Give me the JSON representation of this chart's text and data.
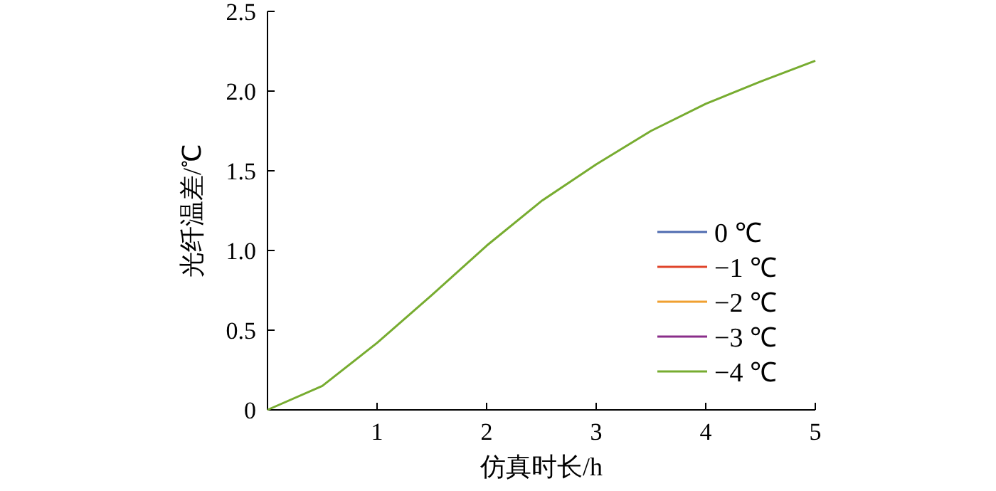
{
  "chart_data": {
    "type": "line",
    "xlabel": "仿真时长/h",
    "ylabel": "光纤温差/℃",
    "x": [
      0,
      0.5,
      1,
      1.5,
      2,
      2.5,
      3,
      3.5,
      4,
      4.5,
      5
    ],
    "series": [
      {
        "name": "0 ℃",
        "color": "#4f6bb0",
        "values": [
          null,
          null,
          null,
          null,
          null,
          null,
          null,
          null,
          null,
          null,
          null
        ]
      },
      {
        "name": "−1 ℃",
        "color": "#e0442a",
        "values": [
          null,
          null,
          null,
          null,
          null,
          null,
          null,
          null,
          null,
          null,
          null
        ]
      },
      {
        "name": "−2 ℃",
        "color": "#f0a030",
        "values": [
          null,
          null,
          null,
          null,
          null,
          null,
          null,
          null,
          null,
          null,
          null
        ]
      },
      {
        "name": "−3 ℃",
        "color": "#8a2e8a",
        "values": [
          null,
          null,
          null,
          null,
          null,
          null,
          null,
          null,
          null,
          null,
          null
        ]
      },
      {
        "name": "−4 ℃",
        "color": "#77ac30",
        "values": [
          0,
          0.15,
          0.42,
          0.72,
          1.03,
          1.31,
          1.54,
          1.75,
          1.92,
          2.06,
          2.19
        ]
      }
    ],
    "xlim": [
      0,
      5
    ],
    "ylim": [
      0,
      2.5
    ],
    "xticks": [
      {
        "value": 0,
        "label": null
      },
      1,
      2,
      3,
      4,
      5
    ],
    "yticks": [
      0,
      0.5,
      {
        "value": 1,
        "label": "1.0"
      },
      1.5,
      {
        "value": 2,
        "label": "2.0"
      },
      2.5
    ],
    "legend": "bottom right",
    "grid": false,
    "marker": "none",
    "line_style": "solid"
  }
}
